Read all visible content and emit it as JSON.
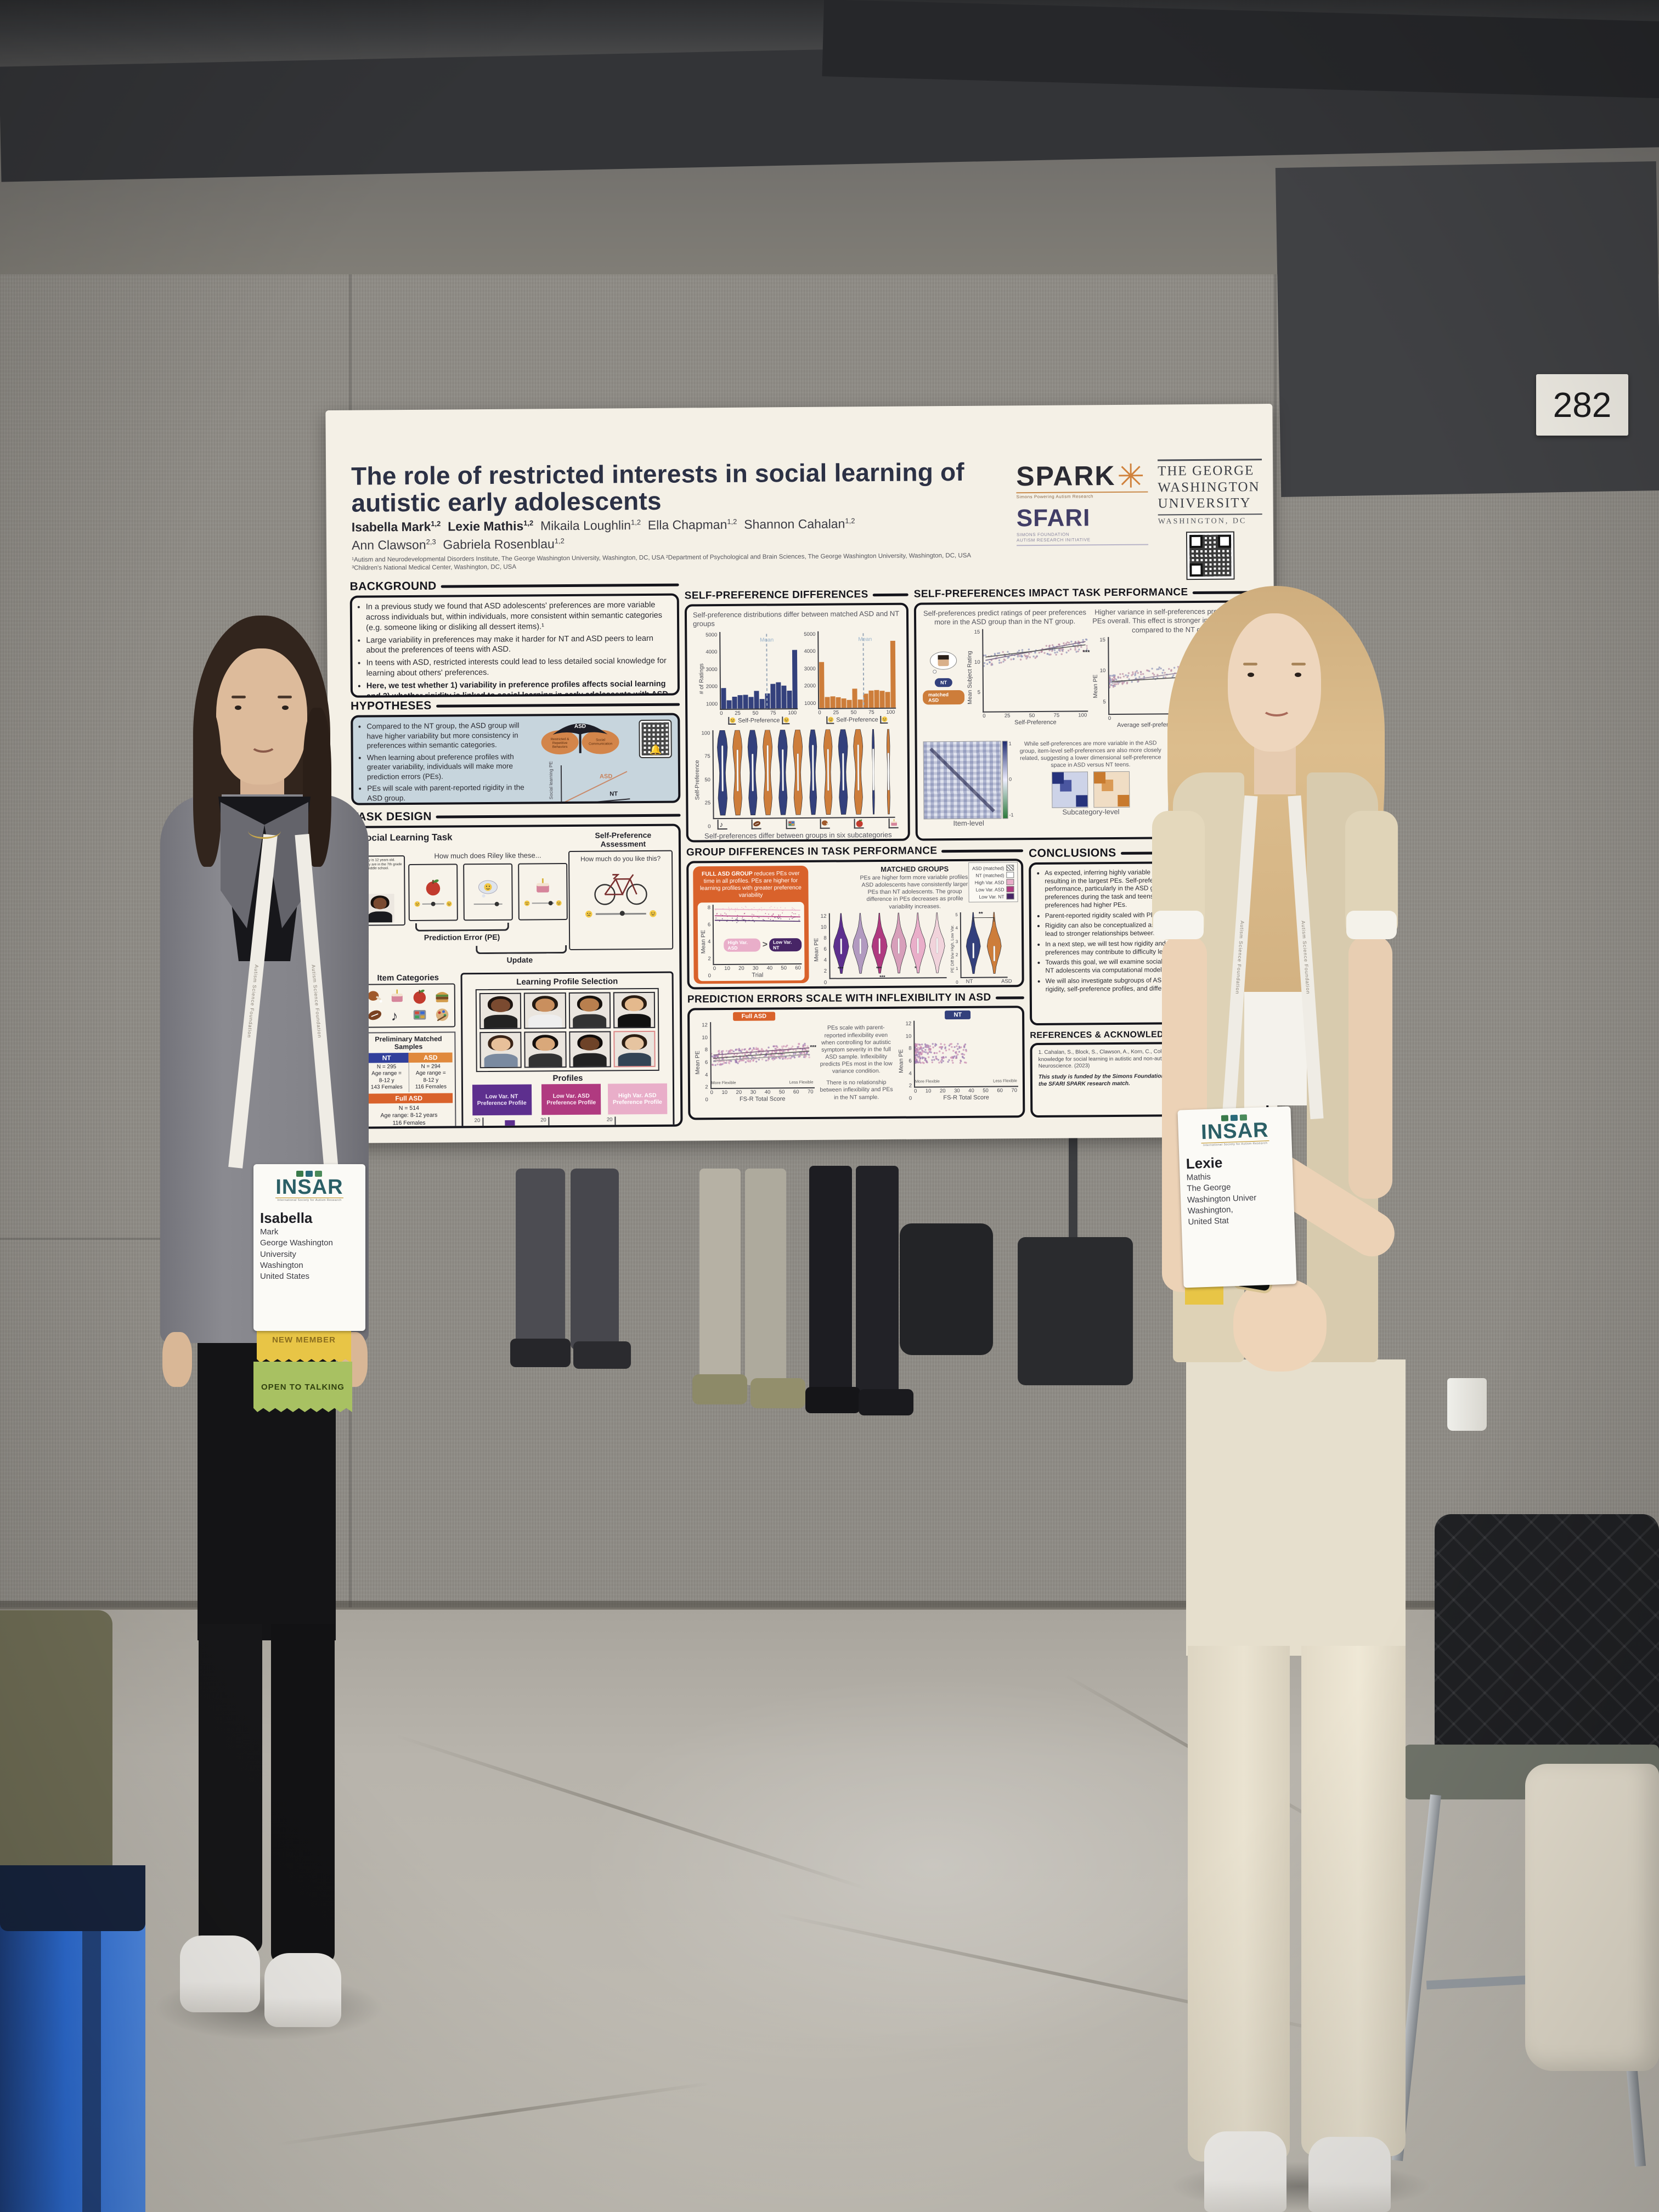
{
  "scene": {
    "room_sign": "282",
    "lanyard_text": "Autism Science Foundation"
  },
  "badge_left": {
    "brand": "INSAR",
    "brand_tag": "International Society for Autism Research",
    "first_name": "Isabella",
    "lines": "Mark\nGeorge Washington\nUniversity\nWashington\nUnited States",
    "ribbon_new_member": "NEW MEMBER",
    "ribbon_open": "OPEN TO TALKING"
  },
  "badge_right": {
    "brand": "INSAR",
    "brand_tag": "International Society for Autism Research",
    "first_name": "Lexie",
    "lines": "Mathis\nThe George\nWashington Univer\nWashington,\nUnited Stat"
  },
  "poster": {
    "title": "The role of restricted interests in social learning of\nautistic early adolescents",
    "authors": [
      {
        "name": "Isabella Mark",
        "sup": "1,2"
      },
      {
        "name": "Lexie Mathis",
        "sup": "1,2"
      },
      {
        "name": "Mikaila Loughlin",
        "sup": "1,2"
      },
      {
        "name": "Ella Chapman",
        "sup": "1,2"
      },
      {
        "name": "Shannon Cahalan",
        "sup": "1,2"
      },
      {
        "name": "Ann Clawson",
        "sup": "2,3"
      },
      {
        "name": "Gabriela Rosenblau",
        "sup": "1,2"
      }
    ],
    "affiliations": "¹Autism and Neurodevelopmental Disorders Institute, The George Washington University, Washington, DC, USA   ²Department of Psychological and Brain Sciences, The George Washington University, Washington, DC, USA\n³Children's National Medical Center, Washington, DC, USA",
    "logos": {
      "spark": "SPARK",
      "spark_tag": "Simons Powering Autism Research",
      "sfari": "SFARI",
      "sfari_tag": "SIMONS FOUNDATION\nAUTISM RESEARCH INITIATIVE",
      "gwu_l1": "THE GEORGE",
      "gwu_l2": "WASHINGTON",
      "gwu_l3": "UNIVERSITY",
      "gwu_l4": "WASHINGTON, DC"
    },
    "background": {
      "heading": "BACKGROUND",
      "bullets": [
        "In a previous study we found that ASD adolescents' preferences are more variable across individuals but, within individuals, more consistent within semantic categories (e.g. someone liking or disliking all dessert items).¹",
        "Large variability in preferences may make it harder for NT and ASD peers to learn about the preferences of teens with ASD.",
        "In teens with ASD, restricted interests could lead to less detailed social knowledge for learning about others' preferences.",
        "Here, we test whether 1) variability in preference profiles affects social learning and 2) whether rigidity is linked to social learning in early adolescents with ASD."
      ]
    },
    "hypotheses": {
      "heading": "HYPOTHESES",
      "bullets": [
        "Compared to the NT group, the ASD group will have higher variability but more consistency in preferences within semantic categories.",
        "When learning about preference profiles with greater variability, individuals will make more prediction errors (PEs).",
        "PEs will scale with parent-reported rigidity in the ASD group."
      ],
      "umbrella_top": "ASD",
      "umbrella_left": "Restricted & Repetitive Behaviors",
      "umbrella_right": "Social Communication",
      "inset_ylabel": "Social learning PEs",
      "inset_xlabel": "Rigidity",
      "inset_line_asd": "ASD",
      "inset_line_nt": "NT"
    },
    "task": {
      "heading": "TASK DESIGN",
      "social_title": "Social Learning Task",
      "riley_card": "Riley is 12 years old. They are in the 7th grade in middle school.",
      "prompt": "How much does Riley like these...",
      "pe_label": "Prediction Error (PE)",
      "update_label": "Update",
      "assess_title": "Self-Preference Assessment",
      "assess_prompt": "How much do you like this?",
      "items_title": "Item Categories",
      "profsel_title": "Learning Profile Selection",
      "profiles_label": "Profiles",
      "profile1": "Low Var. NT Preference Profile",
      "profile2": "Low Var. ASD Preference Profile",
      "profile3": "High Var. ASD Preference Profile",
      "hist_xlabel": "Preference Rating",
      "hist_ylabel": "Frequency",
      "samples_title": "Preliminary Matched Samples",
      "nt_label": "NT",
      "asd_label": "ASD",
      "nt_cell": "N = 295\nAge range =\n8-12 y\n143 Females",
      "asd_cell": "N = 294\nAge range =\n8-12 y\n116 Females",
      "full_label": "Full ASD",
      "full_cell": "N = 514\nAge range: 8-12 years\n116 Females"
    },
    "spd": {
      "heading": "SELF-PREFERENCE DIFFERENCES",
      "caption": "Self-preference distributions differ between matched ASD and NT groups",
      "hist_ylabel": "# of Ratings",
      "hist_xlabel": "Self-Preference",
      "mean_label": "Mean",
      "violin_ylabel": "Self-Preference",
      "violin_caption": "Self-preferences differ between groups in six subcategories"
    },
    "impact": {
      "heading": "SELF-PREFERENCES IMPACT TASK PERFORMANCE",
      "cap1": "Self-preferences  predict ratings of peer preferences more in the ASD group than in the NT group.",
      "s1_ylabel": "Mean Subject Rating",
      "s1_xlabel": "Self-Preference",
      "legend_nt": "NT",
      "legend_asd": "matched ASD",
      "cap2": "Higher variance in self-preferences predicts higher PEs overall. This effect is stronger in the ASD group compared to the NT group.",
      "s2_ylabel": "Mean PE",
      "s2_xlabel": "Average self-preference variance within semantic categories",
      "sig": "***",
      "heat_note": "While self-preferences are more variable in the ASD group, item-level self-preferences are also more closely related, suggesting a lower dimensional self-preference space in ASD versus NT teens.",
      "lab_item": "Item-level",
      "lab_sub": "Subcategory-level",
      "r_label": "r",
      "r_hi": "1",
      "r_mid": "0",
      "r_lo": "-1"
    },
    "group": {
      "heading": "GROUP DIFFERENCES IN TASK PERFORMANCE",
      "full_lead": "FULL ASD GROUP",
      "full_rest": " reduces PEs over time in all profiles. PEs are higher for learning profiles with greater preference variability",
      "trial_ylabel": "Mean PE",
      "trial_xlabel": "Trial",
      "pill_high": "High Var. ASD",
      "pill_gt": ">",
      "pill_low": "Low Var. NT",
      "matched_title": "MATCHED GROUPS",
      "matched_text": "PEs are higher form more variable profiles. ASD adolescents have consistently larger PEs than NT adolescents. The group difference in PEs decreases as profile variability increases.",
      "legend": [
        "ASD (matched)",
        "NT (matched)",
        "High Var. ASD",
        "Low Var. ASD",
        "Low Var. NT"
      ],
      "vm_ylabel": "Mean PE",
      "sig1": "***",
      "sig2": "***",
      "sig3": "*",
      "sig4": "***",
      "vd_ylabel": "PE Diff b/w High, Low Var.",
      "vd_sig": "**",
      "vd_x1": "NT",
      "vd_x2": "ASD"
    },
    "pred": {
      "heading": "PREDICTION ERRORS SCALE WITH INFLEXIBILITY IN ASD",
      "tag_asd": "Full ASD",
      "tag_nt": "NT",
      "ylabel": "Mean PE",
      "xlabel": "FS-R Total Score",
      "flex_left": "More Flexible",
      "flex_right": "Less Flexible",
      "sig": "***",
      "text1": "PEs scale with parent-reported inflexibility even when controlling for autistic symptom severity in the full ASD sample. Inflexibility predicts PEs most in the low variance condition.",
      "text2": "There is no relationship between inflexibility and PEs in the NT sample."
    },
    "conclusions": {
      "heading": "CONCLUSIONS",
      "bullets": [
        "As expected, inferring highly variable self-preferences was most difficult, resulting in the largest PEs. Self-preferences were linked to task performance, particularly in the ASD group. Individuals relied on self-preferences during the task and teens with greater variability in self-preferences had higher PEs.",
        "Parent-reported rigidity scaled with PEs in ASD only.",
        "Rigidity can also be conceptualized as restricted interests, which would lead to stronger relationships between similar items, as observed here.",
        "In a next step, we will test how rigidity and variability in autistic individuals' preferences may contribute to difficulty learning about peers.",
        "Towards this goal, we will examine social learning strategies in ASD and NT adolescents via computational modeling.",
        "We will also investigate subgroups of ASD participants based on overall rigidity, self-preference profiles, and differences in social learning."
      ]
    },
    "refs": {
      "heading": "REFERENCES & ACKNOWLEDGMENTS",
      "ref1": "1. Cahalan, S., Block, S., Clawson, A., Korn, C., Colon, P., & Rosenblau, G. The use of prior knowledge for social learning in autistic and non-autistic adolescents [Poster]. Society for Neuroscience. (2023)",
      "funding": "This study is funded by the Simons Foundation for Autism Research and leverages the SFARI SPARK research match."
    },
    "ticks": {
      "pct": [
        "0",
        "25",
        "50",
        "75",
        "100"
      ],
      "pct_r": [
        "100",
        "75",
        "50",
        "25",
        "0"
      ],
      "ratings": [
        "5000",
        "4000",
        "3000",
        "2000",
        "1000"
      ],
      "r515": [
        "15",
        "10",
        "5"
      ],
      "var3": [
        "0",
        "1",
        "2"
      ],
      "mpe12": [
        "12",
        "10",
        "8",
        "6",
        "4",
        "2",
        "0"
      ],
      "mpe8": [
        "8",
        "6",
        "4",
        "2",
        "0"
      ],
      "trial7": [
        "0",
        "10",
        "20",
        "30",
        "40",
        "50",
        "60"
      ],
      "fsr8": [
        "0",
        "10",
        "20",
        "30",
        "40",
        "50",
        "60",
        "70"
      ],
      "pref6": [
        "0",
        "5",
        "9",
        "13",
        "17",
        "21"
      ],
      "freq2": [
        "20",
        "10"
      ],
      "diff6": [
        "5",
        "4",
        "3",
        "2",
        "1",
        "0"
      ]
    }
  },
  "figures": {
    "profile_hist_nt": [
      4,
      11,
      22,
      14,
      10
    ],
    "profile_hist_asd_low": [
      11,
      12,
      16,
      17,
      3
    ],
    "profile_hist_asd_high": [
      13,
      6,
      14,
      12,
      15
    ],
    "selfpref_hist_nt": [
      1350,
      550,
      780,
      880,
      900,
      760,
      1150,
      620,
      980,
      1600,
      1700,
      1480,
      1150,
      3800
    ],
    "selfpref_hist_asd": [
      3000,
      720,
      760,
      700,
      620,
      520,
      1250,
      540,
      920,
      1120,
      1150,
      1100,
      1020,
      4350
    ],
    "trial_line_levels": [
      7.4,
      6.5,
      5.9
    ],
    "colors": {
      "nt_blue": "#33407c",
      "asd_orange": "#cd7d3a",
      "purple": "#5d2f8e",
      "magenta": "#b03a80",
      "pink": "#e9aec9",
      "full_asd_box": "#d9622b",
      "hypotheses_bg": "#c7d5dd"
    }
  }
}
